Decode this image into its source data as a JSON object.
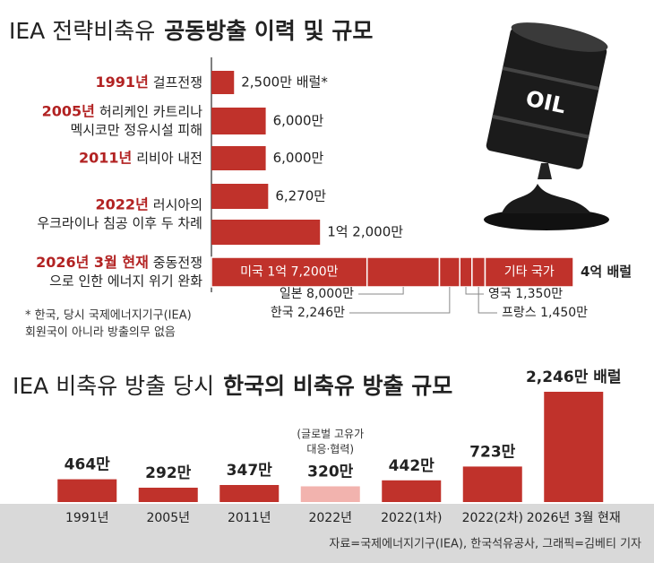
{
  "chart_data": [
    {
      "type": "hbar",
      "title": [
        "IEA 전략비축유",
        "공동방출 이력 및 규모"
      ],
      "categories": [
        "1991년",
        "2005년",
        "2011년",
        "2022년",
        null,
        "2026년 3월 현재"
      ],
      "descriptions": [
        [
          "걸프전쟁"
        ],
        [
          "허리케인 카트리나",
          "멕시코만 정유시설 피해"
        ],
        [
          "리비아 내전"
        ],
        [
          "러시아의",
          "우크라이나 침공 이후 두 차례"
        ],
        null,
        [
          "중동전쟁",
          "으로 인한 에너지 위기 완화"
        ]
      ],
      "values": [
        2500,
        6000,
        6000,
        6270,
        12000,
        40000
      ],
      "value_labels": [
        "2,500만 배럴*",
        "6,000만",
        "6,000만",
        "6,270만",
        "1억 2,000만",
        "4억 배럴"
      ],
      "color": "#c0322b",
      "segments": {
        "names": [
          "미국",
          "일본",
          "한국",
          "영국",
          "프랑스",
          "기타 국가"
        ],
        "values": [
          17200,
          8000,
          2246,
          1350,
          1450,
          9754
        ],
        "value_labels": [
          "미국 1억 7,200만",
          "일본 8,000만",
          "한국 2,246만",
          "영국 1,350만",
          "프랑스 1,450만",
          "기타 국가"
        ]
      },
      "footnote": [
        "* 한국, 당시 국제에너지기구(IEA)",
        "회원국이 아니라 방출의무 없음"
      ],
      "illustration_label": "OIL"
    },
    {
      "type": "bar",
      "title": [
        "IEA 비축유 방출 당시",
        "한국의 비축유 방출 규모"
      ],
      "categories": [
        "1991년",
        "2005년",
        "2011년",
        "2022년",
        "2022(1차)",
        "2022(2차)",
        "2026년 3월 현재"
      ],
      "values": [
        464,
        292,
        347,
        320,
        442,
        723,
        2246
      ],
      "value_labels": [
        "464만",
        "292만",
        "347만",
        "320만",
        "442만",
        "723만",
        "2,246만 배럴"
      ],
      "colors": [
        "#c0322b",
        "#c0322b",
        "#c0322b",
        "#f2b3ae",
        "#c0322b",
        "#c0322b",
        "#c0322b"
      ],
      "annotation": {
        "category": 3,
        "lines": [
          "(글로벌 고유가",
          "대응·협력)"
        ]
      },
      "source": "자료=국제에너지기구(IEA), 한국석유공사, 그래픽=김베티 기자"
    }
  ]
}
